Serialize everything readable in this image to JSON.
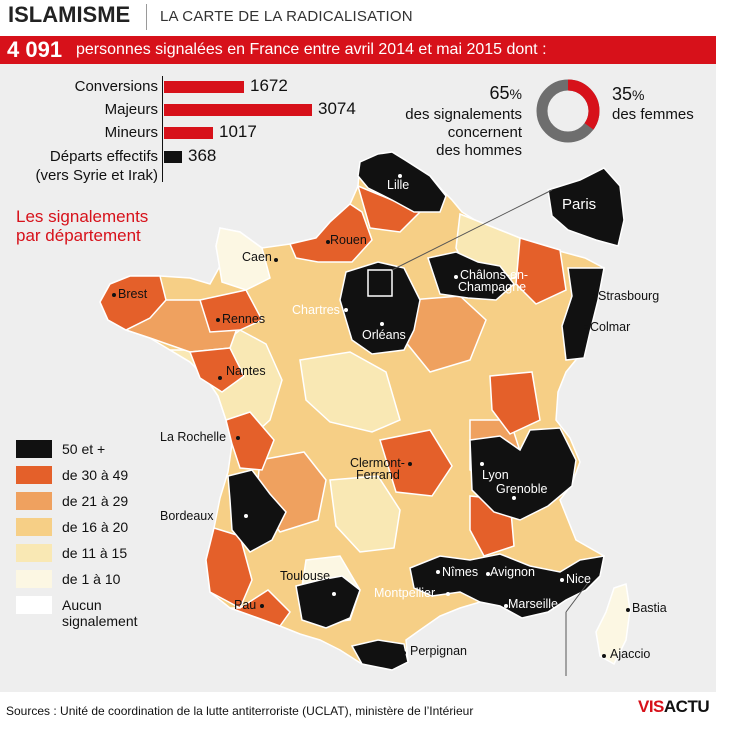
{
  "header": {
    "brand": "ISLAMISME",
    "subtitle": "LA CARTE DE LA RADICALISATION"
  },
  "banner": {
    "total": "4 091",
    "text": "personnes signalées en France entre avril 2014 et mai 2015 dont :"
  },
  "stats": [
    {
      "label": "Conversions",
      "value": "1672",
      "num": 1672,
      "color": "#d7111a"
    },
    {
      "label": "Majeurs",
      "value": "3074",
      "num": 3074,
      "color": "#d7111a"
    },
    {
      "label": "Mineurs",
      "value": "1017",
      "num": 1017,
      "color": "#d7111a"
    },
    {
      "label": "Départs effectifs",
      "label2": "(vers Syrie et Irak)",
      "value": "368",
      "num": 368,
      "color": "#111111"
    }
  ],
  "gender": {
    "men_pct": "65",
    "men_pct_value": 65,
    "men_sign": "%",
    "men_text_1": "des signalements",
    "men_text_2": "concernent",
    "men_text_3": "des hommes",
    "women_pct": "35",
    "women_pct_value": 35,
    "women_sign": "%",
    "women_text": "des femmes",
    "men_color": "#6e6e6e",
    "women_color": "#d7111a"
  },
  "legend": {
    "title_1": "Les signalements",
    "title_2": "par département",
    "items": [
      {
        "label": "50 et +",
        "color": "#111111"
      },
      {
        "label": "de 30 à 49",
        "color": "#e4602a"
      },
      {
        "label": "de 21 à 29",
        "color": "#efa15f"
      },
      {
        "label": "de 16 à 20",
        "color": "#f6cf86"
      },
      {
        "label": "de 11 à 15",
        "color": "#f9e8b4"
      },
      {
        "label": "de 1 à 10",
        "color": "#fcf7e3"
      },
      {
        "label": "Aucun",
        "label2": "signalement",
        "color": "#ffffff"
      }
    ]
  },
  "cities": {
    "lille": "Lille",
    "paris": "Paris",
    "rouen": "Rouen",
    "caen": "Caen",
    "brest": "Brest",
    "rennes": "Rennes",
    "chartres": "Chartres",
    "orleans": "Orléans",
    "chalons_1": "Châlons-en-",
    "chalons_2": "Champagne",
    "strasbourg": "Strasbourg",
    "colmar": "Colmar",
    "nantes": "Nantes",
    "larochelle": "La Rochelle",
    "clermont_1": "Clermont-",
    "clermont_2": "Ferrand",
    "lyon": "Lyon",
    "grenoble": "Grenoble",
    "bordeaux": "Bordeaux",
    "toulouse": "Toulouse",
    "nimes": "Nîmes",
    "avignon": "Avignon",
    "montpellier": "Montpellier",
    "marseille": "Marseille",
    "nice": "Nice",
    "pau": "Pau",
    "perpignan": "Perpignan",
    "bastia": "Bastia",
    "ajaccio": "Ajaccio"
  },
  "footer": {
    "sources": "Sources : Unité de coordination de la lutte antiterroriste (UCLAT), ministère de l’Intérieur",
    "logo_red": "VIS",
    "logo_black": "ACTU"
  },
  "colors": {
    "brand_red": "#d7111a",
    "panel_bg": "#eeeeee"
  }
}
